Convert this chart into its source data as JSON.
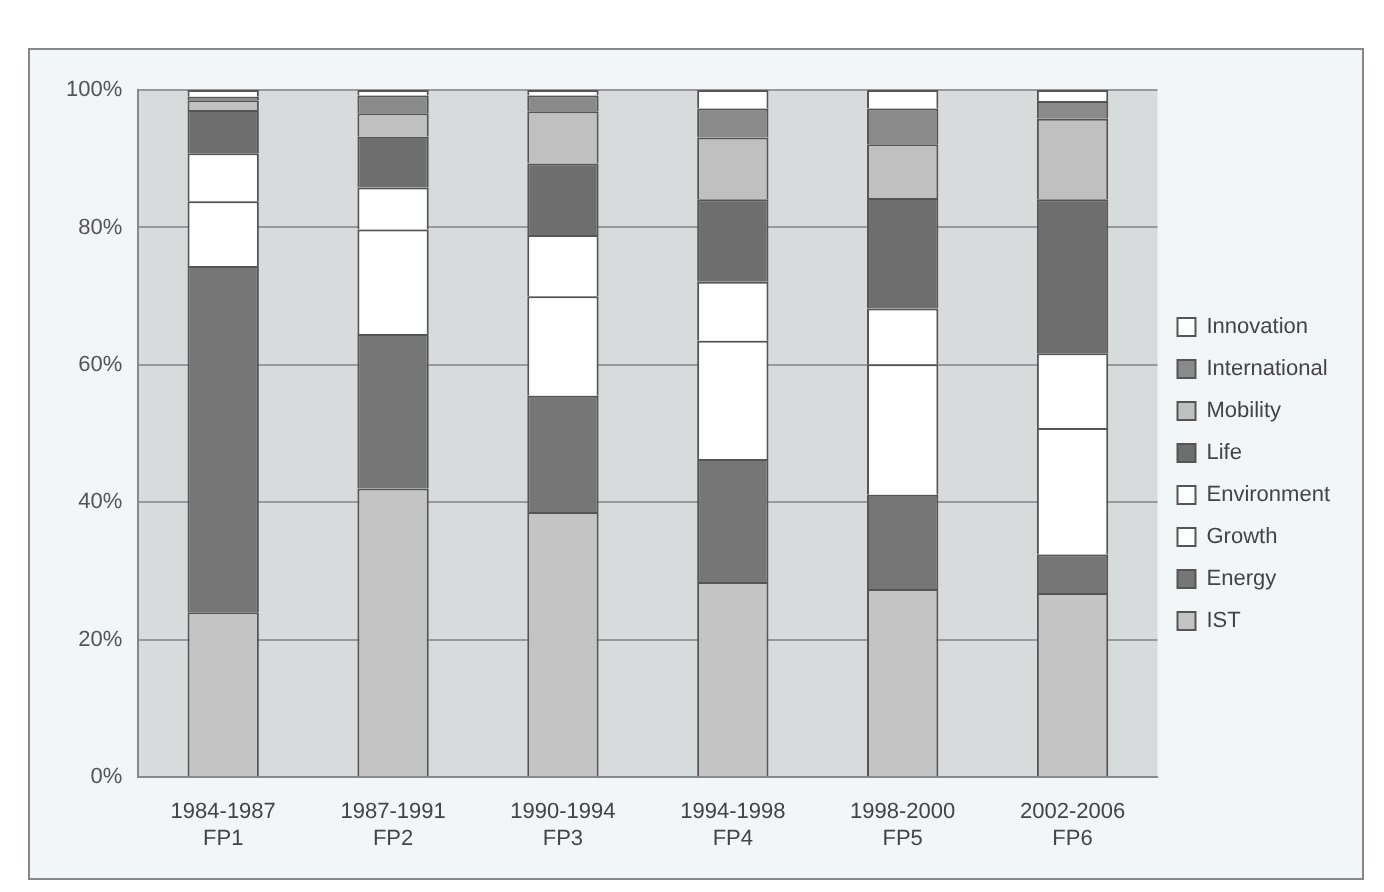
{
  "chart_data": {
    "type": "bar",
    "stacked": true,
    "categories": [
      "1984-1987\nFP1",
      "1987-1991\nFP2",
      "1990-1994\nFP3",
      "1994-1998\nFP4",
      "1998-2000\nFP5",
      "2002-2006\nFP6"
    ],
    "series": [
      {
        "name": "IST",
        "color": "#c4c4c4",
        "values": [
          24,
          42,
          38.6,
          28.4,
          27.4,
          26.8
        ]
      },
      {
        "name": "Energy",
        "color": "#767676",
        "values": [
          50.4,
          22.5,
          16.9,
          17.9,
          13.7,
          5.6
        ]
      },
      {
        "name": "Growth",
        "color": "#ffffff",
        "values": [
          9.4,
          15.2,
          14.5,
          17.2,
          19,
          18.4
        ]
      },
      {
        "name": "Environment",
        "color": "#ffffff",
        "values": [
          7,
          6.1,
          8.9,
          8.6,
          8.1,
          10.9
        ]
      },
      {
        "name": "Life",
        "color": "#6e6e6e",
        "values": [
          6.3,
          7.4,
          10.4,
          12,
          16.1,
          22.4
        ]
      },
      {
        "name": "Mobility",
        "color": "#c0c0c0",
        "values": [
          1.4,
          3.4,
          7.6,
          9,
          7.8,
          11.7
        ]
      },
      {
        "name": "International",
        "color": "#8a8a8a",
        "values": [
          0.5,
          2.6,
          2.3,
          4.2,
          5.2,
          2.6
        ]
      },
      {
        "name": "Innovation",
        "color": "#ffffff",
        "values": [
          1,
          0.8,
          0.8,
          2.7,
          2.7,
          1.6
        ]
      }
    ],
    "ylim": [
      0,
      100
    ],
    "yticks": [
      {
        "value": 0,
        "label": "0%"
      },
      {
        "value": 20,
        "label": "20%"
      },
      {
        "value": 40,
        "label": "40%"
      },
      {
        "value": 60,
        "label": "60%"
      },
      {
        "value": 80,
        "label": "80%"
      },
      {
        "value": 100,
        "label": "100%"
      }
    ],
    "grid": "y",
    "legend": "right"
  }
}
